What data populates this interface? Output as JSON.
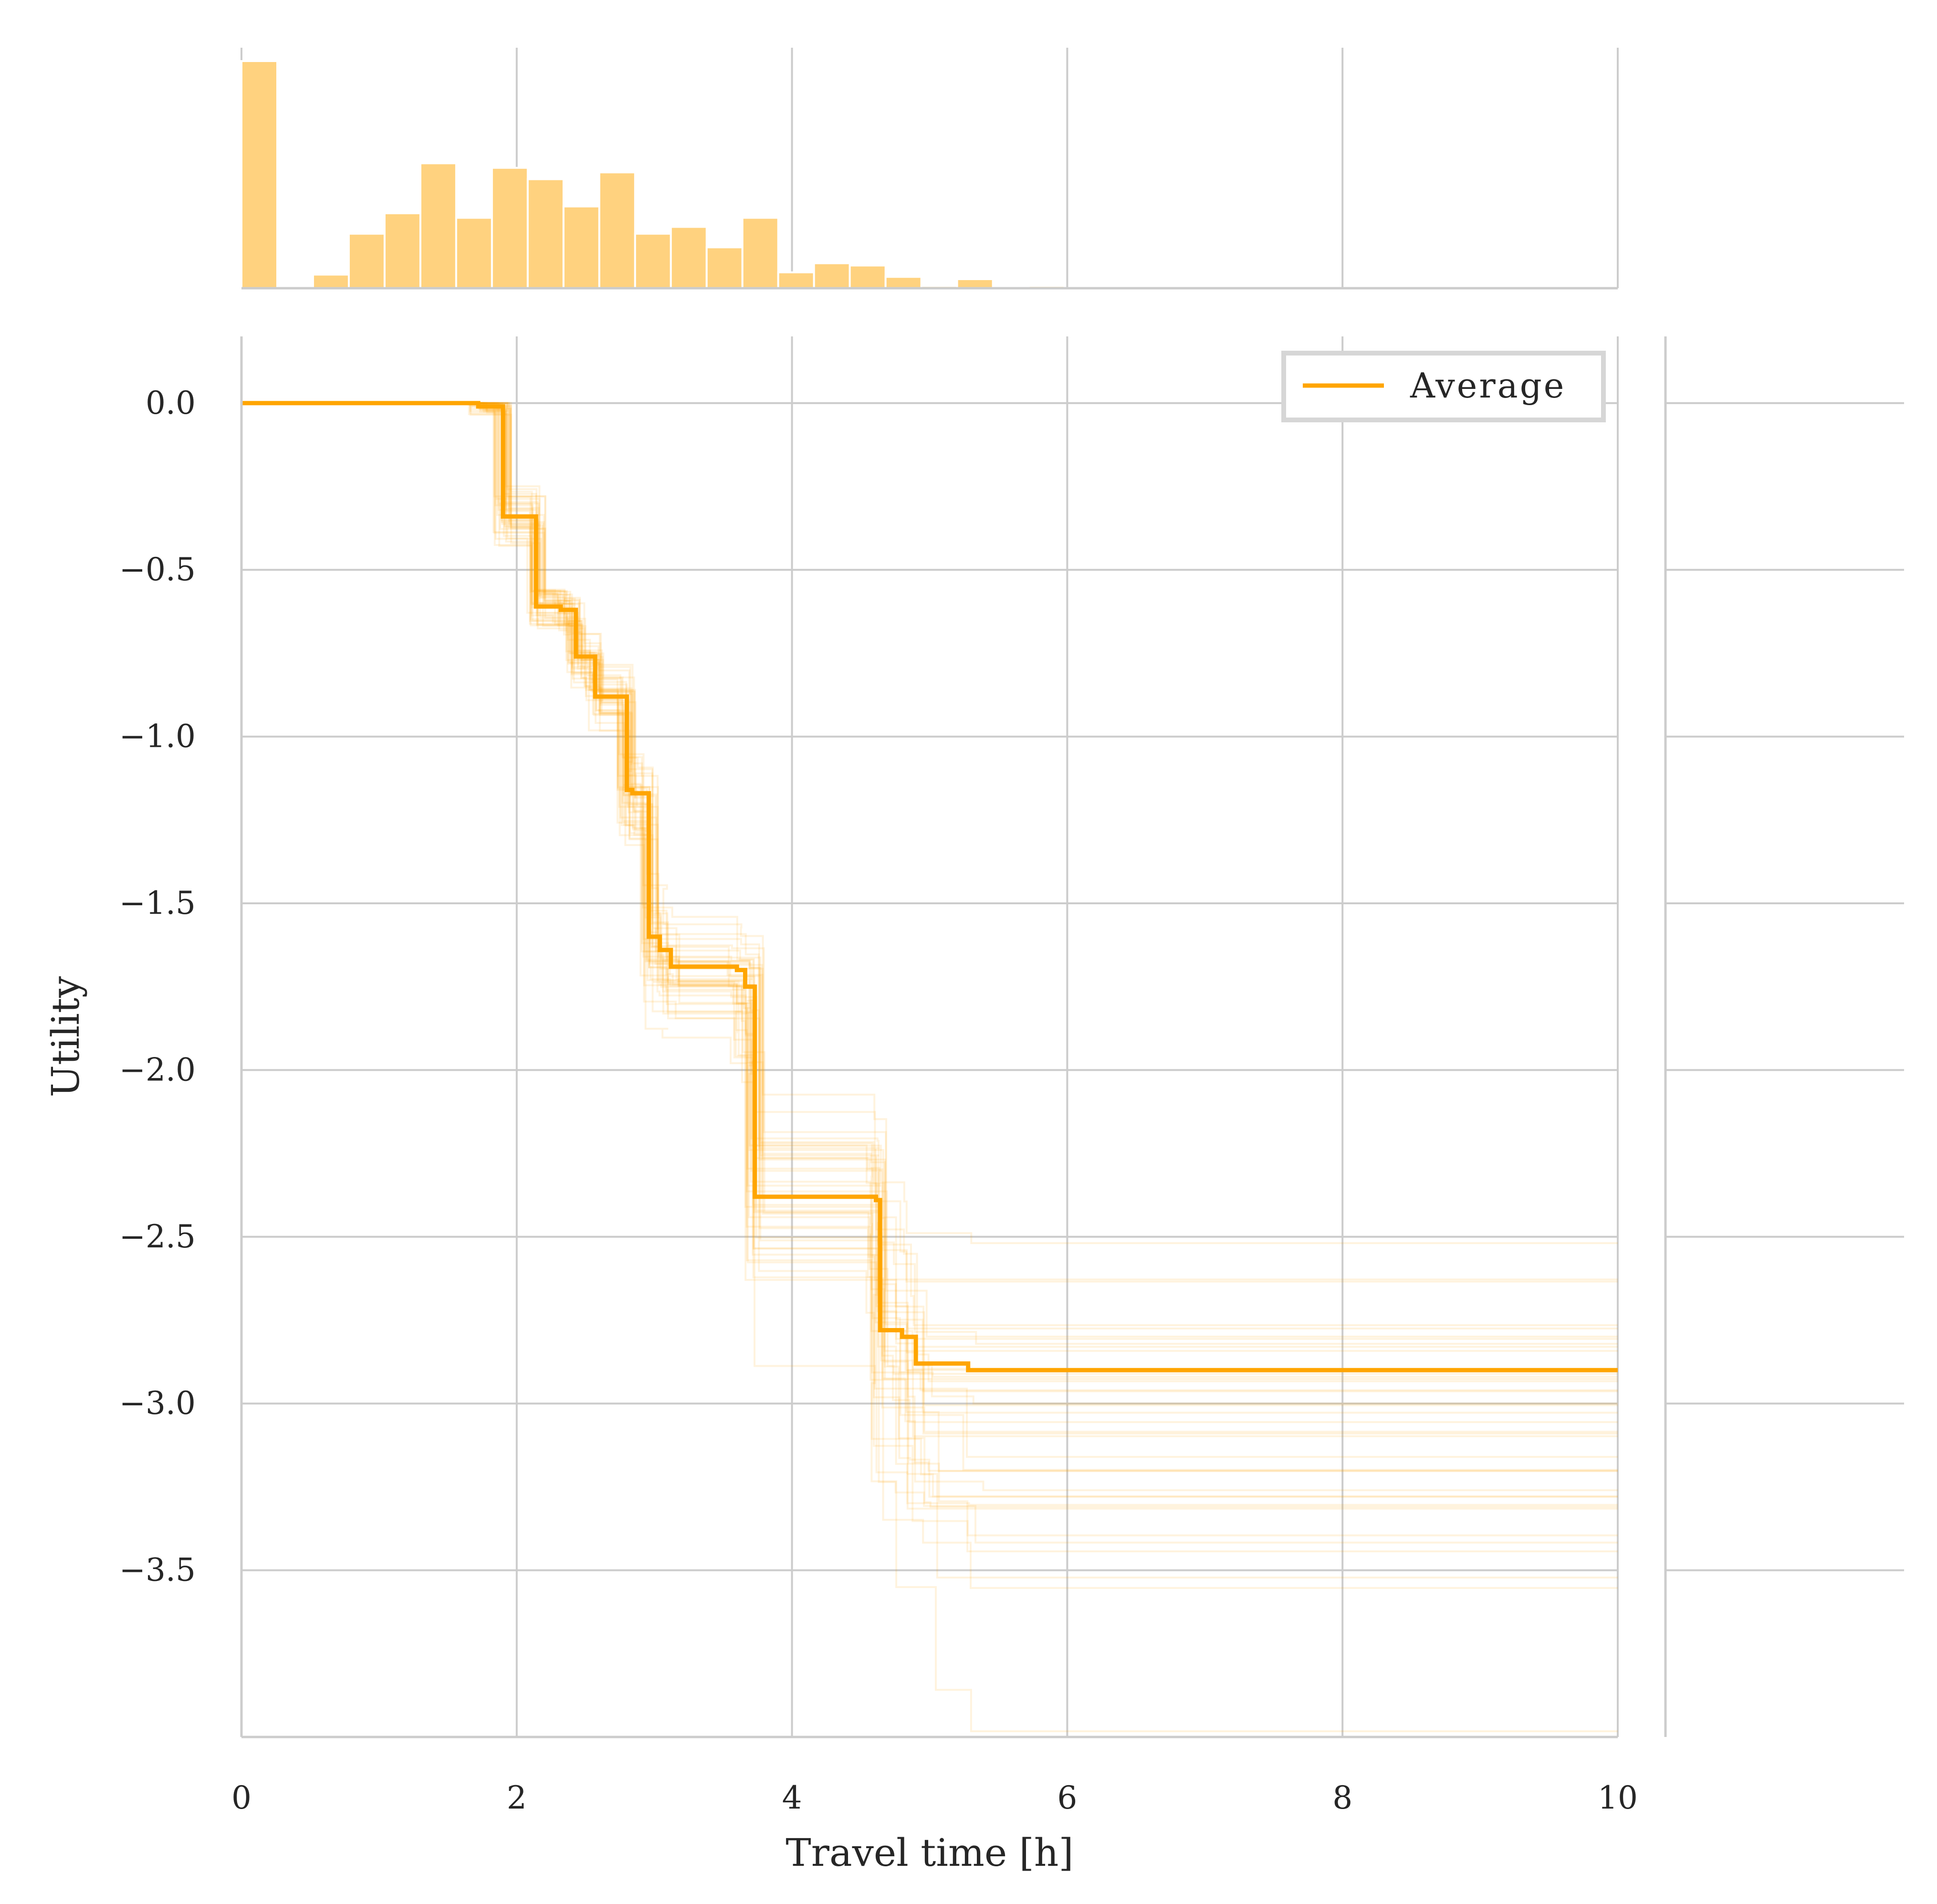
{
  "colors": {
    "accent": "#ffa500",
    "hist_fill": "#ffd27f",
    "grid": "#cccccc",
    "text": "#262626"
  },
  "chart_data": [
    {
      "type": "bar",
      "panel": "marginal-histogram-top",
      "bin_width": 0.26,
      "bins_start": [
        0.0,
        0.26,
        0.52,
        0.78,
        1.04,
        1.3,
        1.56,
        1.82,
        2.08,
        2.34,
        2.6,
        2.86,
        3.12,
        3.38,
        3.64,
        3.9,
        4.16,
        4.42,
        4.68,
        4.94,
        5.2,
        5.46,
        5.72
      ],
      "counts": [
        100,
        0,
        6,
        24,
        33,
        55,
        31,
        53,
        48,
        36,
        51,
        24,
        27,
        18,
        31,
        7,
        11,
        10,
        5,
        1,
        4,
        0,
        1
      ],
      "xlim": [
        0,
        10
      ],
      "grid": true
    },
    {
      "type": "line",
      "panel": "main",
      "xlabel": "Travel time [h]",
      "ylabel": "Utility",
      "xlim": [
        0,
        10
      ],
      "ylim": [
        -4.0,
        0.2
      ],
      "xticks": [
        "0",
        "2",
        "4",
        "6",
        "8",
        "10"
      ],
      "yticks": [
        "0.0",
        "−0.5",
        "−1.0",
        "−1.5",
        "−2.0",
        "−2.5",
        "−3.0",
        "−3.5"
      ],
      "ytick_values": [
        0.0,
        -0.5,
        -1.0,
        -1.5,
        -2.0,
        -2.5,
        -3.0,
        -3.5
      ],
      "grid": true,
      "legend": {
        "position": "top-right",
        "entries": [
          "Average"
        ]
      },
      "series": [
        {
          "name": "Average",
          "step": true,
          "x": [
            0,
            1.72,
            1.9,
            2.14,
            2.32,
            2.43,
            2.57,
            2.8,
            2.84,
            2.96,
            3.04,
            3.12,
            3.6,
            3.66,
            3.73,
            4.61,
            4.64,
            4.8,
            4.9,
            5.0,
            5.28,
            10
          ],
          "y": [
            0,
            -0.01,
            -0.34,
            -0.61,
            -0.62,
            -0.76,
            -0.88,
            -1.16,
            -1.17,
            -1.6,
            -1.64,
            -1.69,
            -1.7,
            -1.75,
            -2.38,
            -2.39,
            -2.78,
            -2.8,
            -2.88,
            -2.88,
            -2.9,
            -2.9
          ]
        }
      ],
      "bootstrap_band": {
        "steps_x": [
          1.72,
          1.9,
          2.14,
          2.32,
          2.43,
          2.57,
          2.8,
          2.84,
          2.96,
          3.04,
          3.12,
          3.6,
          3.66,
          3.73,
          4.61,
          4.64,
          4.8,
          4.9,
          5.0,
          5.28
        ],
        "avg_y": [
          -0.01,
          -0.34,
          -0.61,
          -0.62,
          -0.76,
          -0.88,
          -1.16,
          -1.17,
          -1.6,
          -1.64,
          -1.69,
          -1.7,
          -1.75,
          -2.38,
          -2.39,
          -2.78,
          -2.8,
          -2.88,
          -2.88,
          -2.9
        ],
        "spread": [
          0.05,
          0.18,
          0.12,
          0.13,
          0.14,
          0.16,
          0.2,
          0.22,
          0.24,
          0.22,
          0.2,
          0.25,
          0.3,
          0.22,
          0.25,
          0.45,
          0.4,
          0.42,
          0.42,
          0.38
        ],
        "final_y": [
          -2.42,
          -2.44,
          -2.5,
          -2.58,
          -2.6,
          -2.62,
          -2.65,
          -2.66,
          -2.68,
          -2.7,
          -2.72,
          -2.74,
          -2.75,
          -2.77,
          -2.8,
          -2.82,
          -2.84,
          -2.86,
          -2.88,
          -2.9,
          -2.92,
          -2.95,
          -2.97,
          -3.0,
          -3.02,
          -3.05,
          -3.08,
          -3.1,
          -3.12,
          -3.15,
          -3.18,
          -3.2,
          -3.22,
          -3.24,
          -3.26,
          -3.28,
          -3.3,
          -3.35,
          -3.4,
          -3.54,
          -3.81
        ]
      }
    }
  ]
}
